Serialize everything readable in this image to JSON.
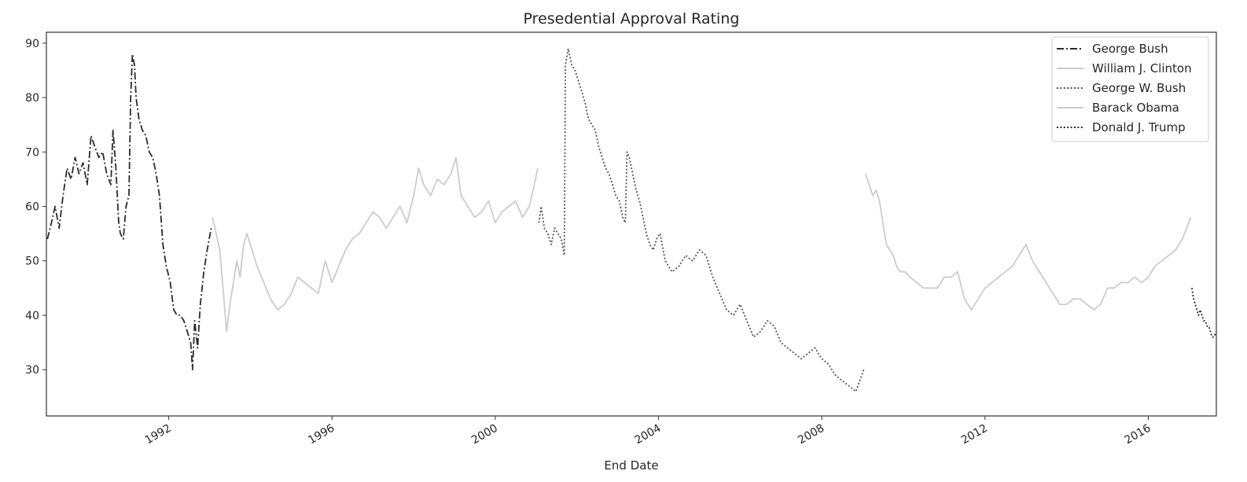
{
  "chart_data": {
    "type": "line",
    "title": "Presedential Approval Rating",
    "xlabel": "End Date",
    "ylabel": "",
    "xlim": [
      "1989-01-01",
      "2017-09-01"
    ],
    "ylim": [
      21.5,
      92
    ],
    "x_ticks": [
      {
        "date": "1992-01-01",
        "label": "1992"
      },
      {
        "date": "1996-01-01",
        "label": "1996"
      },
      {
        "date": "2000-01-01",
        "label": "2000"
      },
      {
        "date": "2004-01-01",
        "label": "2004"
      },
      {
        "date": "2008-01-01",
        "label": "2008"
      },
      {
        "date": "2012-01-01",
        "label": "2012"
      },
      {
        "date": "2016-01-01",
        "label": "2016"
      }
    ],
    "y_ticks": [
      30,
      40,
      50,
      60,
      70,
      80,
      90
    ],
    "grid": false,
    "legend": "top-right",
    "series": [
      {
        "name": "George Bush",
        "color": "#2b2b2b",
        "dash": "dashdot",
        "x": [
          "1989-01-10",
          "1989-02-15",
          "1989-03-20",
          "1989-04-25",
          "1989-05-30",
          "1989-07-05",
          "1989-08-10",
          "1989-09-15",
          "1989-10-20",
          "1989-11-25",
          "1990-01-01",
          "1990-02-05",
          "1990-03-10",
          "1990-04-15",
          "1990-05-20",
          "1990-06-25",
          "1990-08-01",
          "1990-08-20",
          "1990-09-15",
          "1990-10-10",
          "1990-10-25",
          "1990-11-20",
          "1990-12-15",
          "1991-01-10",
          "1991-01-25",
          "1991-02-10",
          "1991-02-28",
          "1991-03-15",
          "1991-04-10",
          "1991-05-10",
          "1991-06-10",
          "1991-07-10",
          "1991-08-10",
          "1991-09-10",
          "1991-10-10",
          "1991-11-10",
          "1991-12-10",
          "1992-01-15",
          "1992-02-15",
          "1992-03-15",
          "1992-04-15",
          "1992-05-15",
          "1992-06-15",
          "1992-07-15",
          "1992-08-01",
          "1992-08-20",
          "1992-09-15",
          "1992-10-10",
          "1992-11-10",
          "1992-12-10",
          "1993-01-15"
        ],
        "y": [
          54,
          57,
          60,
          56,
          62,
          67,
          65,
          69,
          66,
          68,
          64,
          73,
          71,
          69,
          70,
          66,
          64,
          74,
          67,
          57,
          55,
          54,
          60,
          62,
          80,
          88,
          86,
          80,
          76,
          74,
          73,
          70,
          69,
          66,
          62,
          53,
          49,
          46,
          41,
          40,
          40,
          39,
          37,
          35,
          30,
          39,
          34,
          42,
          48,
          52,
          56
        ]
      },
      {
        "name": "William J. Clinton",
        "color": "#cccccc",
        "dash": "solid",
        "x": [
          "1993-01-25",
          "1993-03-01",
          "1993-04-01",
          "1993-05-01",
          "1993-06-01",
          "1993-07-01",
          "1993-08-01",
          "1993-09-01",
          "1993-10-01",
          "1993-11-01",
          "1993-12-01",
          "1994-01-15",
          "1994-03-01",
          "1994-05-01",
          "1994-07-01",
          "1994-09-01",
          "1994-11-01",
          "1995-01-01",
          "1995-03-01",
          "1995-05-01",
          "1995-07-01",
          "1995-09-01",
          "1995-11-01",
          "1996-01-01",
          "1996-03-01",
          "1996-05-01",
          "1996-07-01",
          "1996-09-01",
          "1996-11-01",
          "1997-01-01",
          "1997-03-01",
          "1997-05-01",
          "1997-07-01",
          "1997-09-01",
          "1997-11-01",
          "1998-01-01",
          "1998-02-15",
          "1998-04-01",
          "1998-06-01",
          "1998-08-01",
          "1998-10-01",
          "1998-12-01",
          "1999-01-15",
          "1999-03-01",
          "1999-05-01",
          "1999-07-01",
          "1999-09-01",
          "1999-11-01",
          "2000-01-01",
          "2000-03-01",
          "2000-05-01",
          "2000-07-01",
          "2000-09-01",
          "2000-11-01",
          "2000-12-15",
          "2001-01-15"
        ],
        "y": [
          58,
          55,
          52,
          45,
          37,
          42,
          46,
          50,
          47,
          53,
          55,
          52,
          49,
          46,
          43,
          41,
          42,
          44,
          47,
          46,
          45,
          44,
          50,
          46,
          49,
          52,
          54,
          55,
          57,
          59,
          58,
          56,
          58,
          60,
          57,
          62,
          67,
          64,
          62,
          65,
          64,
          66,
          69,
          62,
          60,
          58,
          59,
          61,
          57,
          59,
          60,
          61,
          58,
          60,
          64,
          67
        ]
      },
      {
        "name": "George W. Bush",
        "color": "#555555",
        "dash": "dotted",
        "x": [
          "2001-01-25",
          "2001-02-15",
          "2001-03-15",
          "2001-04-15",
          "2001-05-15",
          "2001-06-15",
          "2001-07-15",
          "2001-08-15",
          "2001-09-10",
          "2001-09-20",
          "2001-10-15",
          "2001-11-15",
          "2001-12-15",
          "2002-01-15",
          "2002-02-15",
          "2002-03-15",
          "2002-04-15",
          "2002-05-15",
          "2002-06-15",
          "2002-07-15",
          "2002-08-15",
          "2002-09-15",
          "2002-10-15",
          "2002-11-15",
          "2002-12-15",
          "2003-01-15",
          "2003-02-15",
          "2003-03-10",
          "2003-03-25",
          "2003-04-15",
          "2003-05-15",
          "2003-06-15",
          "2003-07-15",
          "2003-08-15",
          "2003-09-15",
          "2003-10-15",
          "2003-11-15",
          "2003-12-15",
          "2004-01-15",
          "2004-03-01",
          "2004-05-01",
          "2004-07-01",
          "2004-09-01",
          "2004-11-01",
          "2005-01-01",
          "2005-03-01",
          "2005-05-01",
          "2005-07-01",
          "2005-09-01",
          "2005-11-01",
          "2006-01-01",
          "2006-03-01",
          "2006-05-01",
          "2006-07-01",
          "2006-09-01",
          "2006-11-01",
          "2007-01-01",
          "2007-03-01",
          "2007-05-01",
          "2007-07-01",
          "2007-09-01",
          "2007-11-01",
          "2008-01-01",
          "2008-03-01",
          "2008-05-01",
          "2008-07-01",
          "2008-09-01",
          "2008-11-01",
          "2009-01-10"
        ],
        "y": [
          57,
          60,
          56,
          55,
          53,
          56,
          55,
          54,
          51,
          86,
          89,
          86,
          85,
          83,
          81,
          79,
          76,
          75,
          74,
          71,
          69,
          67,
          66,
          64,
          62,
          61,
          58,
          57,
          70,
          69,
          66,
          63,
          61,
          58,
          55,
          53,
          52,
          54,
          55,
          50,
          48,
          49,
          51,
          50,
          52,
          51,
          47,
          44,
          41,
          40,
          42,
          39,
          36,
          37,
          39,
          38,
          35,
          34,
          33,
          32,
          33,
          34,
          32,
          31,
          29,
          28,
          27,
          26,
          30
        ]
      },
      {
        "name": "Barack Obama",
        "color": "#cccccc",
        "dash": "solid",
        "x": [
          "2009-01-25",
          "2009-03-01",
          "2009-04-01",
          "2009-05-01",
          "2009-06-01",
          "2009-07-01",
          "2009-08-01",
          "2009-09-01",
          "2009-10-01",
          "2009-11-01",
          "2009-12-01",
          "2010-01-15",
          "2010-03-01",
          "2010-05-01",
          "2010-07-01",
          "2010-09-01",
          "2010-11-01",
          "2011-01-01",
          "2011-03-01",
          "2011-05-01",
          "2011-07-01",
          "2011-09-01",
          "2011-11-01",
          "2012-01-01",
          "2012-03-01",
          "2012-05-01",
          "2012-07-01",
          "2012-09-01",
          "2012-11-01",
          "2013-01-01",
          "2013-03-01",
          "2013-05-01",
          "2013-07-01",
          "2013-09-01",
          "2013-11-01",
          "2014-01-01",
          "2014-03-01",
          "2014-05-01",
          "2014-07-01",
          "2014-09-01",
          "2014-11-01",
          "2015-01-01",
          "2015-03-01",
          "2015-05-01",
          "2015-07-01",
          "2015-09-01",
          "2015-11-01",
          "2016-01-01",
          "2016-03-01",
          "2016-05-01",
          "2016-07-01",
          "2016-09-01",
          "2016-11-01",
          "2017-01-15"
        ],
        "y": [
          66,
          64,
          62,
          63,
          61,
          57,
          53,
          52,
          51,
          49,
          48,
          48,
          47,
          46,
          45,
          45,
          45,
          47,
          47,
          48,
          43,
          41,
          43,
          45,
          46,
          47,
          48,
          49,
          51,
          53,
          50,
          48,
          46,
          44,
          42,
          42,
          43,
          43,
          42,
          41,
          42,
          45,
          45,
          46,
          46,
          47,
          46,
          47,
          49,
          50,
          51,
          52,
          54,
          58
        ]
      },
      {
        "name": "Donald J. Trump",
        "color": "#2b2b2b",
        "dash": "dotted",
        "x": [
          "2017-01-25",
          "2017-02-10",
          "2017-02-25",
          "2017-03-10",
          "2017-03-25",
          "2017-04-10",
          "2017-04-25",
          "2017-05-10",
          "2017-05-25",
          "2017-06-10",
          "2017-06-25",
          "2017-07-10",
          "2017-07-25",
          "2017-08-10",
          "2017-08-31"
        ],
        "y": [
          45,
          43,
          42,
          41,
          40,
          41,
          40,
          39,
          39,
          38,
          38,
          37,
          36,
          36,
          37
        ]
      }
    ]
  }
}
